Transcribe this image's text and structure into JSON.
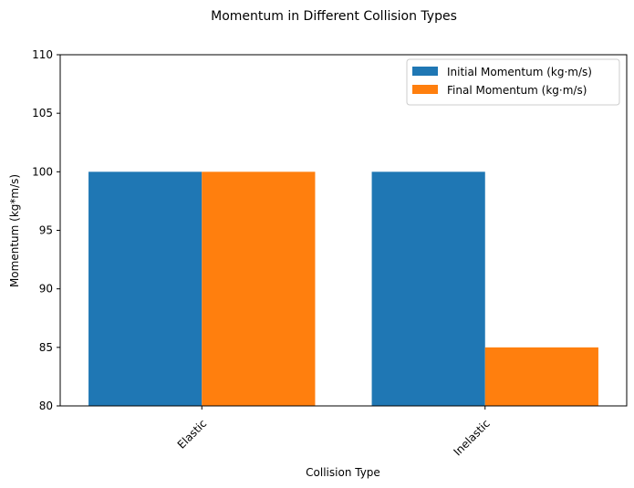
{
  "chart_data": {
    "type": "bar",
    "title": "Momentum in Different Collision Types",
    "xlabel": "Collision Type",
    "ylabel": "Momentum (kg*m/s)",
    "categories": [
      "Elastic",
      "Inelastic"
    ],
    "series": [
      {
        "name": "Initial Momentum (kg·m/s)",
        "values": [
          100,
          100
        ],
        "color": "#1f77b4"
      },
      {
        "name": "Final Momentum (kg·m/s)",
        "values": [
          100,
          85
        ],
        "color": "#ff7f0e"
      }
    ],
    "ylim": [
      80,
      110
    ],
    "yticks": [
      80,
      85,
      90,
      95,
      100,
      105,
      110
    ],
    "xtick_rotation": 45,
    "grid": false,
    "legend_position": "top-right"
  }
}
